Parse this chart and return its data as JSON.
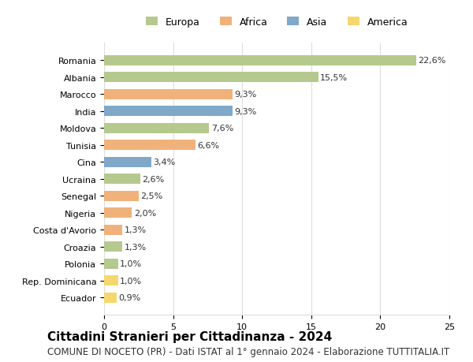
{
  "countries": [
    "Romania",
    "Albania",
    "Marocco",
    "India",
    "Moldova",
    "Tunisia",
    "Cina",
    "Ucraina",
    "Senegal",
    "Nigeria",
    "Costa d'Avorio",
    "Croazia",
    "Polonia",
    "Rep. Dominicana",
    "Ecuador"
  ],
  "values": [
    22.6,
    15.5,
    9.3,
    9.3,
    7.6,
    6.6,
    3.4,
    2.6,
    2.5,
    2.0,
    1.3,
    1.3,
    1.0,
    1.0,
    0.9
  ],
  "labels": [
    "22,6%",
    "15,5%",
    "9,3%",
    "9,3%",
    "7,6%",
    "6,6%",
    "3,4%",
    "2,6%",
    "2,5%",
    "2,0%",
    "1,3%",
    "1,3%",
    "1,0%",
    "1,0%",
    "0,9%"
  ],
  "continents": [
    "Europa",
    "Europa",
    "Africa",
    "Asia",
    "Europa",
    "Africa",
    "Asia",
    "Europa",
    "Africa",
    "Africa",
    "Africa",
    "Europa",
    "Europa",
    "America",
    "America"
  ],
  "continent_colors": {
    "Europa": "#b5c98e",
    "Africa": "#f0b27a",
    "Asia": "#7fa8c9",
    "America": "#f5d76e"
  },
  "legend_order": [
    "Europa",
    "Africa",
    "Asia",
    "America"
  ],
  "xlim": [
    0,
    25
  ],
  "xticks": [
    0,
    5,
    10,
    15,
    20,
    25
  ],
  "title": "Cittadini Stranieri per Cittadinanza - 2024",
  "subtitle": "COMUNE DI NOCETO (PR) - Dati ISTAT al 1° gennaio 2024 - Elaborazione TUTTITALIA.IT",
  "title_fontsize": 11,
  "subtitle_fontsize": 8.5,
  "label_fontsize": 8,
  "tick_fontsize": 8,
  "legend_fontsize": 9,
  "background_color": "#ffffff",
  "bar_height": 0.6,
  "grid_color": "#dddddd"
}
